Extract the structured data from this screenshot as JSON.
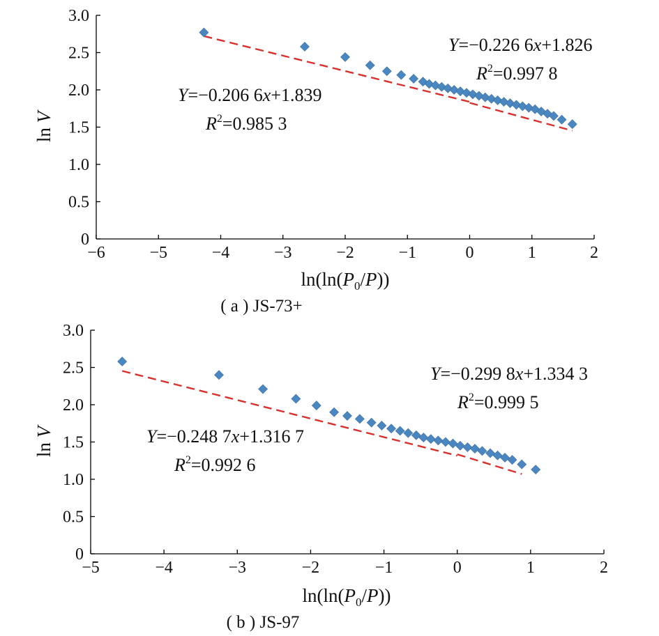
{
  "chart_data": [
    {
      "type": "scatter",
      "panel_label": "( a ) JS-73+",
      "xlabel": "ln(ln(P0/P))",
      "ylabel": "ln V",
      "xlim": [
        -6,
        2
      ],
      "ylim": [
        0,
        3.0
      ],
      "xticks": [
        "−6",
        "−5",
        "−4",
        "−3",
        "−2",
        "−1",
        "0",
        "1",
        "2"
      ],
      "yticks": [
        "0",
        "0.5",
        "1.0",
        "1.5",
        "2.0",
        "2.5",
        "3.0"
      ],
      "x": [
        -4.27,
        -2.65,
        -2.0,
        -1.6,
        -1.33,
        -1.1,
        -0.9,
        -0.75,
        -0.65,
        -0.55,
        -0.45,
        -0.35,
        -0.25,
        -0.15,
        -0.05,
        0.05,
        0.15,
        0.25,
        0.35,
        0.45,
        0.55,
        0.65,
        0.75,
        0.85,
        0.95,
        1.05,
        1.15,
        1.25,
        1.35,
        1.48,
        1.65
      ],
      "y": [
        2.77,
        2.58,
        2.44,
        2.33,
        2.25,
        2.2,
        2.15,
        2.11,
        2.08,
        2.06,
        2.04,
        2.02,
        2.0,
        1.98,
        1.96,
        1.94,
        1.92,
        1.9,
        1.88,
        1.86,
        1.84,
        1.82,
        1.8,
        1.78,
        1.76,
        1.74,
        1.71,
        1.68,
        1.65,
        1.6,
        1.54
      ],
      "fits": [
        {
          "x_range": [
            -4.27,
            0.0
          ],
          "slope": -0.2066,
          "intercept": 1.839
        },
        {
          "x_range": [
            0.0,
            1.65
          ],
          "slope": -0.2266,
          "intercept": 1.826
        }
      ],
      "annotations": {
        "left": {
          "eq_prefix": "Y",
          "eq_rest": "=−0.206 6",
          "eq_var": "x",
          "eq_tail": "+1.839",
          "r2_prefix": "R",
          "r2_sup": "2",
          "r2_value": "=0.985 3"
        },
        "right": {
          "eq_prefix": "Y",
          "eq_rest": "=−0.226 6",
          "eq_var": "x",
          "eq_tail": "+1.826",
          "r2_prefix": "R",
          "r2_sup": "2",
          "r2_value": "=0.997 8"
        }
      }
    },
    {
      "type": "scatter",
      "panel_label": "( b ) JS-97",
      "xlabel": "ln(ln(P0/P))",
      "ylabel": "ln V",
      "xlim": [
        -5,
        2
      ],
      "ylim": [
        0,
        3.0
      ],
      "xticks": [
        "−5",
        "−4",
        "−3",
        "−2",
        "−1",
        "0",
        "1",
        "2"
      ],
      "yticks": [
        "0",
        "0.5",
        "1.0",
        "1.5",
        "2.0",
        "2.5",
        "3.0"
      ],
      "x": [
        -4.57,
        -3.25,
        -2.65,
        -2.2,
        -1.92,
        -1.68,
        -1.5,
        -1.33,
        -1.17,
        -1.03,
        -0.9,
        -0.78,
        -0.67,
        -0.56,
        -0.46,
        -0.36,
        -0.26,
        -0.16,
        -0.06,
        0.04,
        0.14,
        0.24,
        0.34,
        0.45,
        0.55,
        0.65,
        0.75,
        0.88,
        1.07
      ],
      "y": [
        2.58,
        2.4,
        2.21,
        2.08,
        1.99,
        1.9,
        1.85,
        1.81,
        1.76,
        1.72,
        1.68,
        1.65,
        1.62,
        1.59,
        1.56,
        1.54,
        1.52,
        1.5,
        1.48,
        1.45,
        1.43,
        1.41,
        1.38,
        1.35,
        1.32,
        1.29,
        1.26,
        1.2,
        1.13
      ],
      "fits": [
        {
          "x_range": [
            -4.57,
            0.0
          ],
          "slope": -0.2487,
          "intercept": 1.3167
        },
        {
          "x_range": [
            0.0,
            0.88
          ],
          "slope": -0.2998,
          "intercept": 1.3343
        }
      ],
      "annotations": {
        "left": {
          "eq_prefix": "Y",
          "eq_rest": "=−0.248 7",
          "eq_var": "x",
          "eq_tail": "+1.316 7",
          "r2_prefix": "R",
          "r2_sup": "2",
          "r2_value": "=0.992 6"
        },
        "right": {
          "eq_prefix": "Y",
          "eq_rest": "=−0.299 8",
          "eq_var": "x",
          "eq_tail": "+1.334 3",
          "r2_prefix": "R",
          "r2_sup": "2",
          "r2_value": "=0.999 5"
        }
      }
    }
  ],
  "colors": {
    "points": "#4a86bf",
    "fit_line": "#d9302c"
  }
}
